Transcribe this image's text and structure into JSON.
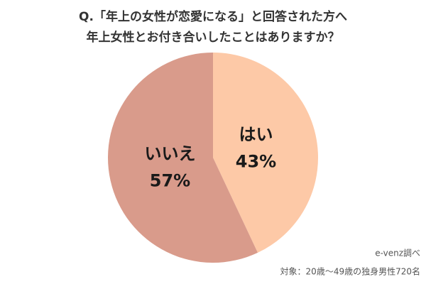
{
  "chart_data": {
    "type": "pie",
    "title": [
      "Q.「年上の女性が恋愛になる」と回答された方へ",
      "年上女性とお付き合いしたことはありますか？"
    ],
    "categories": [
      "はい",
      "いいえ"
    ],
    "values": [
      43,
      57
    ],
    "value_labels": [
      "43%",
      "57%"
    ],
    "colors": [
      "#fdc9a7",
      "#d99b8b"
    ],
    "notes": [
      "e-venz調べ",
      "対象：20歳〜49歳の独身男性720名"
    ]
  }
}
